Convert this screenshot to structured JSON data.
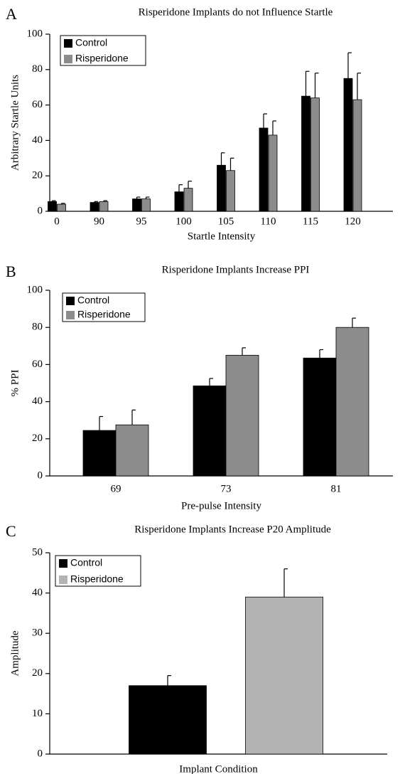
{
  "chart_data": [
    {
      "type": "bar",
      "panel": "A",
      "title": "Risperidone Implants do not Influence Startle",
      "xlabel": "Startle Intensity",
      "ylabel": "Arbitrary Startle Units",
      "categories": [
        "0",
        "90",
        "95",
        "100",
        "105",
        "110",
        "115",
        "120"
      ],
      "series": [
        {
          "name": "Control",
          "color": "#000000",
          "values": [
            5.5,
            5,
            7,
            11,
            26,
            47,
            65,
            75
          ],
          "errors": [
            0.5,
            0.5,
            1,
            4,
            7,
            8,
            14,
            14.5
          ]
        },
        {
          "name": "Risperidone",
          "color": "#8c8c8c",
          "values": [
            4,
            5.5,
            7,
            13,
            23,
            43,
            64,
            63
          ],
          "errors": [
            0.5,
            0.5,
            1,
            4,
            7,
            8,
            14,
            15
          ]
        }
      ],
      "ylim": [
        0,
        100
      ],
      "yticks": [
        0,
        20,
        40,
        60,
        80,
        100
      ],
      "legend": "upper left"
    },
    {
      "type": "bar",
      "panel": "B",
      "title": "Risperidone Implants Increase PPI",
      "xlabel": "Pre-pulse Intensity",
      "ylabel": "% PPI",
      "categories": [
        "69",
        "73",
        "81"
      ],
      "series": [
        {
          "name": "Control",
          "color": "#000000",
          "values": [
            24.5,
            48.5,
            63.5
          ],
          "errors": [
            7.5,
            4,
            4.5
          ]
        },
        {
          "name": "Risperidone",
          "color": "#8c8c8c",
          "values": [
            27.5,
            65,
            80
          ],
          "errors": [
            8,
            4,
            5
          ]
        }
      ],
      "ylim": [
        0,
        100
      ],
      "yticks": [
        0,
        20,
        40,
        60,
        80,
        100
      ],
      "legend": "upper left"
    },
    {
      "type": "bar",
      "panel": "C",
      "title": "Risperidone Implants Increase P20 Amplitude",
      "xlabel": "Implant Condition",
      "ylabel": "Amplitude",
      "series": [
        {
          "name": "Control",
          "color": "#000000",
          "values": [
            17
          ],
          "errors": [
            2.5
          ]
        },
        {
          "name": "Risperidone",
          "color": "#b3b3b3",
          "values": [
            39
          ],
          "errors": [
            7
          ]
        }
      ],
      "ylim": [
        0,
        50
      ],
      "yticks": [
        0,
        10,
        20,
        30,
        40,
        50
      ],
      "legend": "upper left"
    }
  ]
}
